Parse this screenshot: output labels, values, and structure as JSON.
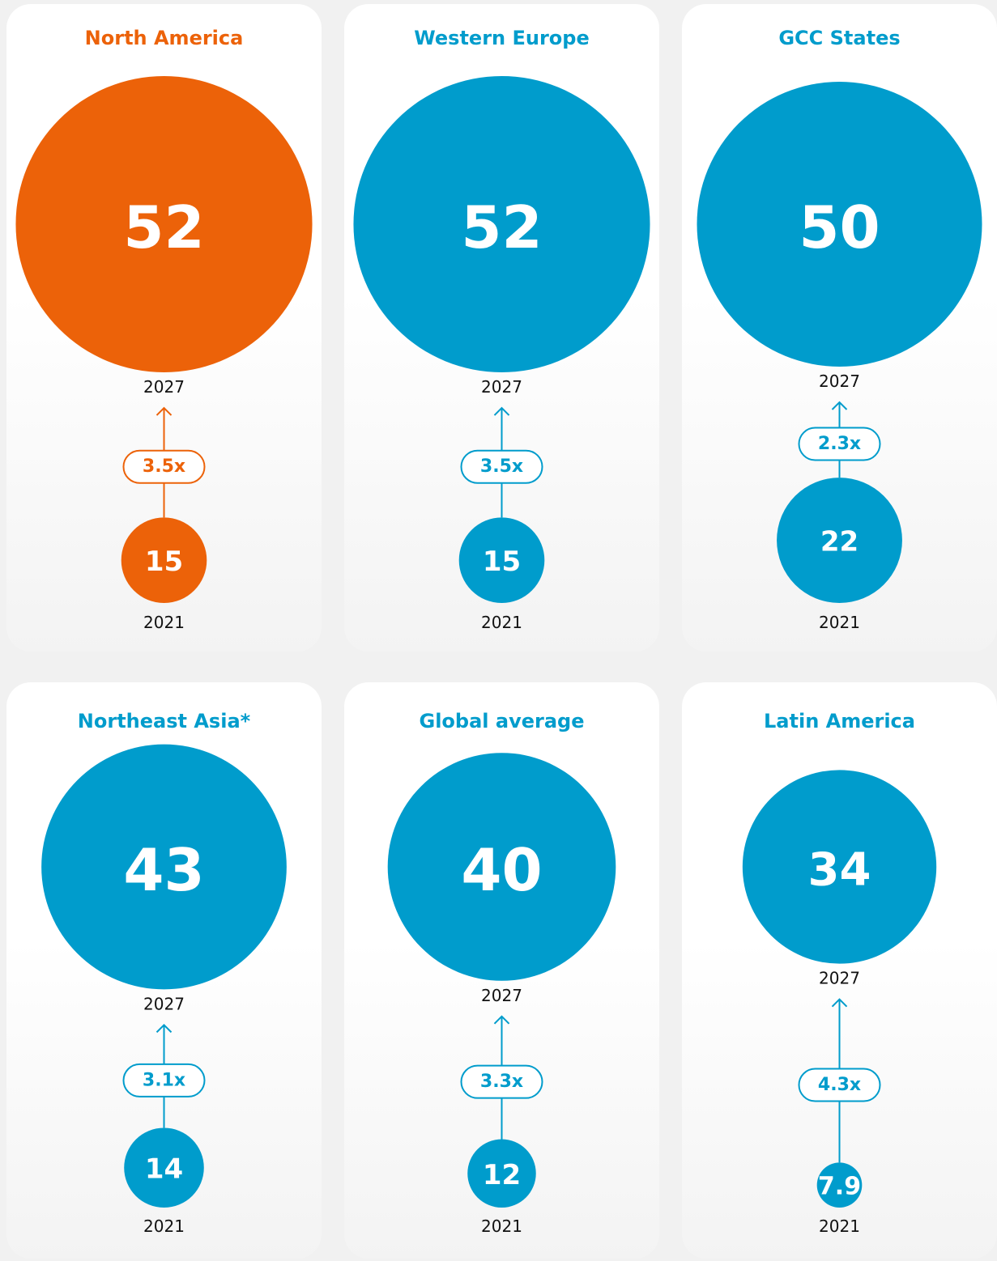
{
  "chart_data": {
    "type": "bubble",
    "years": [
      "2027",
      "2021"
    ],
    "panels": [
      {
        "title": "North America",
        "color": "#ec6209",
        "values": [
          52,
          15
        ],
        "growth": "3.5x"
      },
      {
        "title": "Western Europe",
        "color": "#009ccc",
        "values": [
          52,
          15
        ],
        "growth": "3.5x"
      },
      {
        "title": "GCC States",
        "color": "#009ccc",
        "values": [
          50,
          22
        ],
        "growth": "2.3x"
      },
      {
        "title": "Northeast Asia*",
        "color": "#009ccc",
        "values": [
          43,
          14
        ],
        "growth": "3.1x"
      },
      {
        "title": "Global average",
        "color": "#009ccc",
        "values": [
          40,
          12
        ],
        "growth": "3.3x"
      },
      {
        "title": "Latin America",
        "color": "#009ccc",
        "values": [
          34,
          7.9
        ],
        "growth": "4.3x"
      }
    ]
  }
}
